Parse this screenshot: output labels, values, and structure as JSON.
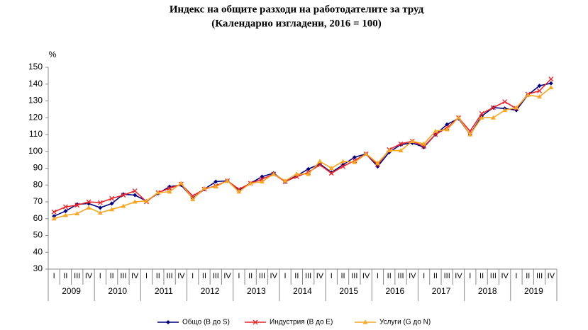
{
  "chart_data": {
    "type": "line",
    "title": "Индекс на общите разходи на работодателите за труд",
    "subtitle": "(Календарно изгладени, 2016 = 100)",
    "y_label": "%",
    "categories": [
      "I",
      "II",
      "III",
      "IV",
      "I",
      "II",
      "III",
      "IV",
      "I",
      "II",
      "III",
      "IV",
      "I",
      "II",
      "III",
      "IV",
      "I",
      "II",
      "III",
      "IV",
      "I",
      "II",
      "III",
      "IV",
      "I",
      "II",
      "III",
      "IV",
      "I",
      "II",
      "III",
      "IV",
      "I",
      "II",
      "III",
      "IV",
      "I",
      "II",
      "III",
      "IV",
      "I",
      "II",
      "III",
      "IV"
    ],
    "years": [
      "2009",
      "2010",
      "2011",
      "2012",
      "2013",
      "2014",
      "2015",
      "2016",
      "2017",
      "2018",
      "2019"
    ],
    "ylim": [
      30,
      150
    ],
    "yticks": [
      30,
      40,
      50,
      60,
      70,
      80,
      90,
      100,
      110,
      120,
      130,
      140,
      150
    ],
    "grid": false,
    "legend": "bottom",
    "series": [
      {
        "name": "Общо (B до S)",
        "color": "#000080",
        "marker": "diamond",
        "values": [
          61.5,
          64.5,
          68.5,
          69,
          66.5,
          69,
          74.5,
          74,
          70.5,
          75,
          79,
          80,
          72,
          77.5,
          82,
          82.5,
          77,
          81,
          85,
          87,
          82,
          85.5,
          89.5,
          92.5,
          87.5,
          92,
          96.5,
          98.5,
          91,
          99.5,
          104,
          105,
          102.5,
          110,
          116,
          119.5,
          110,
          121,
          126,
          125.5,
          124.5,
          133.5,
          139,
          140.5
        ]
      },
      {
        "name": "Индустрия (B до E)",
        "color": "#e8262b",
        "marker": "x",
        "values": [
          64,
          67,
          68,
          70,
          69.5,
          72,
          74,
          76.5,
          70,
          75.5,
          78,
          80.5,
          73.5,
          77.5,
          79.5,
          82.5,
          77.5,
          81,
          83.5,
          86.5,
          82,
          85,
          87.5,
          92,
          87,
          91,
          94.5,
          98.5,
          92,
          101,
          104.5,
          106,
          103,
          110,
          114,
          120,
          112,
          122.5,
          126,
          129.5,
          125.5,
          134,
          136,
          143
        ]
      },
      {
        "name": "Услуги (G до N)",
        "color": "#f5a623",
        "marker": "triangle",
        "values": [
          60,
          62,
          63,
          66.5,
          63.5,
          65.5,
          67.5,
          70,
          70.5,
          75.5,
          76,
          81,
          71.5,
          78,
          79,
          82.5,
          76,
          81,
          82,
          86.5,
          82.5,
          86.5,
          86.5,
          94,
          90,
          94,
          93.5,
          98.5,
          93,
          100.5,
          100.5,
          106,
          104.5,
          112,
          113,
          120,
          110,
          120,
          120,
          124.5,
          126,
          133.5,
          132.5,
          138
        ]
      }
    ]
  }
}
